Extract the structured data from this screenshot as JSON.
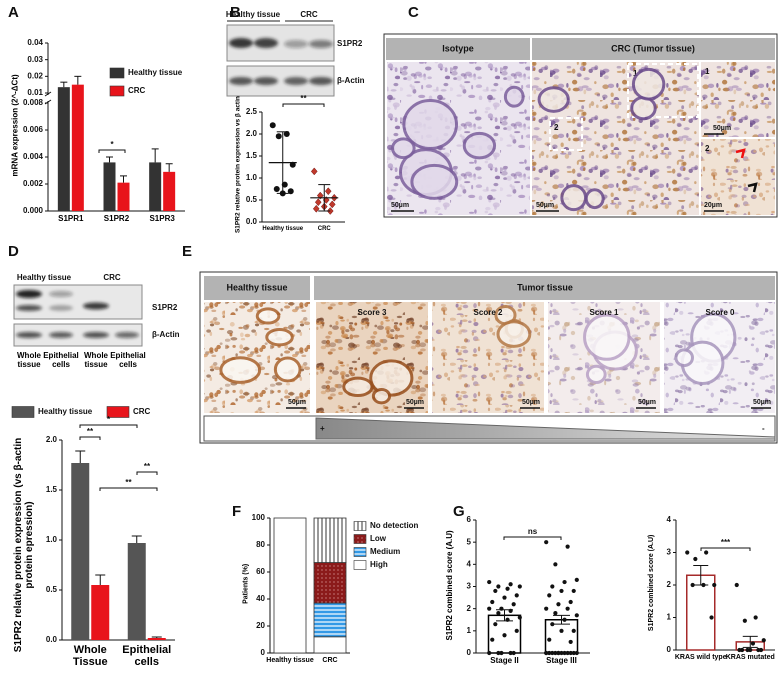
{
  "panel_labels": [
    "A",
    "B",
    "C",
    "D",
    "E",
    "F",
    "G"
  ],
  "blot_b": {
    "groups": [
      "Healthy tissue",
      "CRC"
    ],
    "rows": [
      "S1PR2",
      "β-Actin"
    ]
  },
  "blot_d": {
    "groups": [
      "Healthy tissue",
      "CRC"
    ],
    "rows": [
      "S1PR2",
      "β-Actin"
    ],
    "lanes": [
      "Whole tissue",
      "Epithelial cells",
      "Whole tissue",
      "Epithelial cells"
    ]
  },
  "panel_c": {
    "headers": [
      "Isotype",
      "CRC (Tumor tissue)"
    ],
    "box_labels": [
      "1",
      "2"
    ],
    "inset_labels": [
      "1",
      "2"
    ],
    "scale_bars": [
      "50µm",
      "50µm",
      "50µm",
      "20µm"
    ]
  },
  "panel_e": {
    "headers": [
      "Healthy tissue",
      "Tumor tissue"
    ],
    "scores": [
      "Score 3",
      "Score 2",
      "Score 1",
      "Score 0"
    ],
    "scale_bars": [
      "50µm",
      "50µm",
      "50µm",
      "50µm",
      "50µm"
    ],
    "gradient": [
      "+",
      "-"
    ]
  },
  "chart_data": [
    {
      "type": "bar",
      "ylabel": "mRNA expression (2^-ΔCt)",
      "categories": [
        "S1PR1",
        "S1PR2",
        "S1PR3"
      ],
      "ylim": [
        0,
        0.04
      ],
      "ybreak": [
        0.008,
        0.01
      ],
      "yticks": [
        {
          "value": 0,
          "label": "0.000"
        },
        0.002,
        0.004,
        0.006,
        0.008,
        0.01,
        0.02,
        0.03,
        0.04
      ],
      "error_direction": "up",
      "legend": "upper right",
      "series": [
        {
          "name": "Healthy tissue",
          "color": "#333333",
          "values": [
            0.0135,
            0.0036,
            0.0036
          ],
          "errors": [
            0.003,
            0.0004,
            0.001
          ]
        },
        {
          "name": "CRC",
          "color": "#e8141b",
          "values": [
            0.015,
            0.0021,
            0.0029
          ],
          "errors": [
            0.005,
            0.0005,
            0.0006
          ]
        }
      ],
      "annotations": [
        "*"
      ]
    },
    {
      "type": "dot",
      "ylabel": "S1PR2 relative protein expression vs β actin",
      "categories": [
        "Healthy tissue",
        "CRC"
      ],
      "ylim": [
        0,
        2.5
      ],
      "yticks": [
        {
          "value": 0,
          "label": "0.0"
        },
        0.5,
        {
          "value": 1,
          "label": "1.0"
        },
        1.5,
        {
          "value": 2,
          "label": "2.0"
        },
        2.5
      ],
      "points": [
        [
          2.2,
          2.0,
          1.95,
          1.3,
          0.85,
          0.75,
          0.7,
          0.65
        ],
        [
          1.15,
          0.7,
          0.6,
          0.55,
          0.5,
          0.45,
          0.4,
          0.35,
          0.3,
          0.25
        ]
      ],
      "mean": [
        1.35,
        0.55
      ],
      "error": [
        0.7,
        0.3
      ],
      "colors": [
        "#111111",
        "#c0392b"
      ],
      "markers": [
        "circle",
        "diamond"
      ],
      "annotations": [
        "**"
      ]
    },
    {
      "type": "bar",
      "ylabel": "S1PR2 relative protein expression (vs β-actin protein epression)",
      "categories": [
        "Whole Tissue",
        "Epithelial cells"
      ],
      "ylim": [
        0,
        2
      ],
      "yticks": [
        {
          "value": 0,
          "label": "0.0"
        },
        0.5,
        {
          "value": 1,
          "label": "1.0"
        },
        1.5,
        {
          "value": 2,
          "label": "2.0"
        }
      ],
      "error_direction": "up",
      "legend": "top",
      "series": [
        {
          "name": "Healthy tissue",
          "color": "#555555",
          "values": [
            1.77,
            0.97
          ],
          "errors": [
            0.12,
            0.07
          ]
        },
        {
          "name": "CRC",
          "color": "#e8141b",
          "values": [
            0.55,
            0.02
          ],
          "errors": [
            0.1,
            0.01
          ]
        }
      ],
      "annotations": [
        "*",
        "**",
        "**",
        "**"
      ]
    },
    {
      "type": "stacked_bar",
      "ylabel": "Patients (%)",
      "categories": [
        "Healthy tissue",
        "CRC"
      ],
      "ylim": [
        0,
        100
      ],
      "yticks": [
        0,
        20,
        40,
        60,
        80,
        100
      ],
      "legend": "right",
      "series": [
        {
          "name": "High",
          "color": "#ffffff",
          "values": [
            100,
            12
          ]
        },
        {
          "name": "Medium",
          "color": "#3399e6",
          "pattern": "hstripe",
          "values": [
            0,
            25
          ]
        },
        {
          "name": "Low",
          "color": "#8b1a1a",
          "pattern": "dots",
          "values": [
            0,
            30
          ]
        },
        {
          "name": "No detection",
          "color": "#ffffff",
          "pattern": "vstripe",
          "values": [
            0,
            33
          ]
        }
      ]
    },
    {
      "type": "bar",
      "ylabel": "S1PR2 combined score (A.U)",
      "categories": [
        "Stage II",
        "Stage III"
      ],
      "ylim": [
        0,
        6
      ],
      "yticks": [
        0,
        1,
        2,
        3,
        4,
        5,
        6
      ],
      "error_direction": "both",
      "point_color": "#111111",
      "series": [
        {
          "color": "#ffffff",
          "stroke": "#000000",
          "values": [
            1.7,
            1.5
          ],
          "errors": [
            0.25,
            0.2
          ],
          "points": [
            [
              3.2,
              3.1,
              3.0,
              3.0,
              2.9,
              2.8,
              2.6,
              2.5,
              2.3,
              2.2,
              2.0,
              2.0,
              1.9,
              1.8,
              1.6,
              1.5,
              1.3,
              1.0,
              0.8,
              0.6,
              0,
              0,
              0,
              0,
              0
            ],
            [
              5.0,
              4.8,
              4.0,
              3.3,
              3.2,
              3.0,
              2.8,
              2.8,
              2.6,
              2.3,
              2.2,
              2.0,
              2.0,
              1.8,
              1.7,
              1.5,
              1.3,
              1.0,
              1.0,
              0.6,
              0.5,
              0,
              0,
              0,
              0,
              0,
              0,
              0,
              0,
              0,
              0,
              0,
              0,
              0
            ]
          ]
        }
      ],
      "annotations": [
        "ns"
      ]
    },
    {
      "type": "bar",
      "ylabel": "S1PR2 combined score (A.U)",
      "categories": [
        "KRAS wild type",
        "KRAS mutated"
      ],
      "ylim": [
        0,
        4
      ],
      "yticks": [
        0,
        1,
        2,
        3,
        4
      ],
      "error_direction": "both",
      "point_color": "#111111",
      "series": [
        {
          "color": "#ffffff",
          "stroke": "#a52a2a",
          "values": [
            2.3,
            0.25
          ],
          "errors": [
            0.3,
            0.17
          ],
          "points": [
            [
              3.0,
              3.0,
              2.8,
              2.0,
              2.0,
              2.0,
              1.0
            ],
            [
              2.0,
              1.0,
              0.9,
              0.3,
              0.2,
              0,
              0,
              0,
              0,
              0,
              0
            ]
          ]
        }
      ],
      "annotations": [
        "***"
      ]
    }
  ]
}
